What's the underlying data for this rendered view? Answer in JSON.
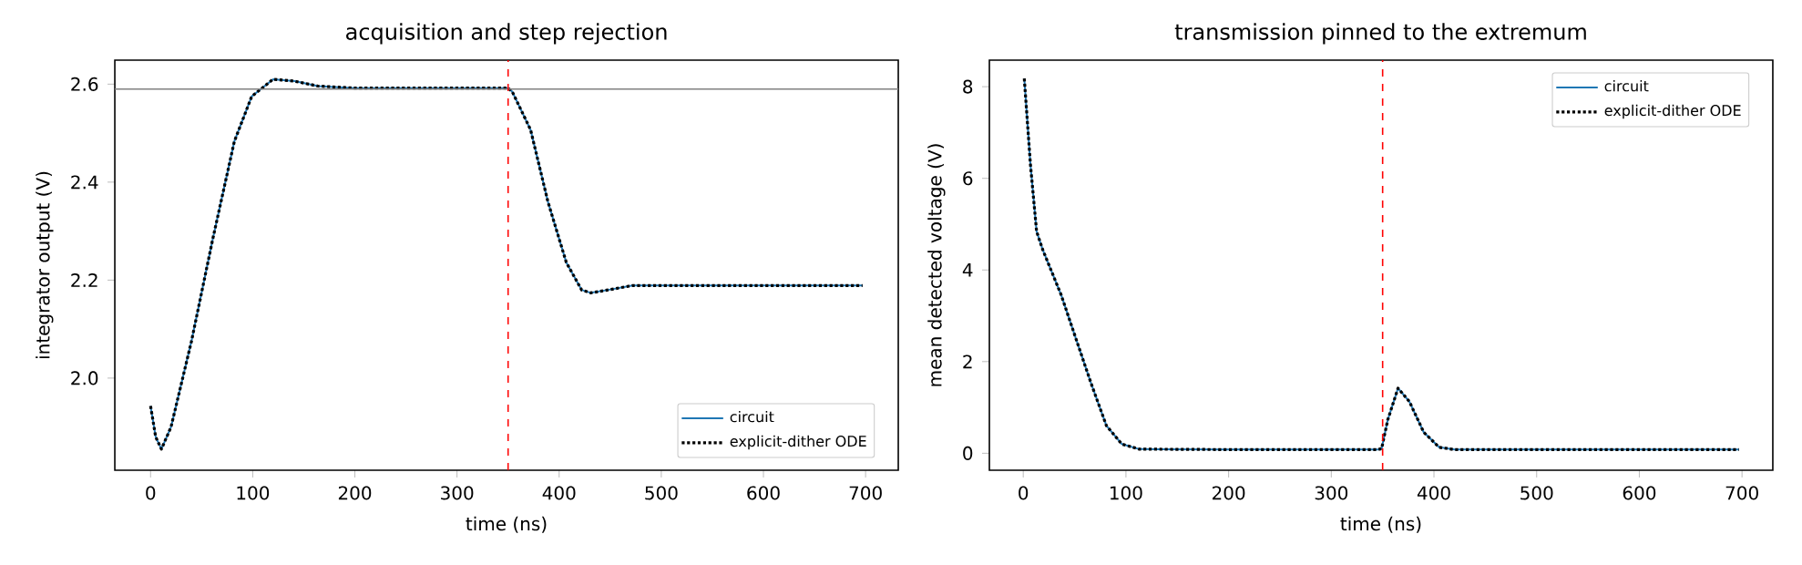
{
  "chart_data": [
    {
      "type": "line",
      "title": "acquisition and step rejection",
      "xlabel": "time (ns)",
      "ylabel": "integrator output (V)",
      "x": [
        0,
        5,
        10.6,
        20,
        40,
        61,
        82,
        99,
        120,
        141,
        164,
        200,
        250,
        300,
        350,
        354,
        372,
        389,
        407,
        422,
        431,
        448,
        472,
        550,
        697
      ],
      "series": [
        {
          "name": "circuit",
          "color": "#1f77b4",
          "line_style": "solid",
          "values": [
            1.943,
            1.88,
            1.855,
            1.9,
            2.075,
            2.285,
            2.483,
            2.575,
            2.61,
            2.606,
            2.596,
            2.592,
            2.592,
            2.592,
            2.592,
            2.585,
            2.507,
            2.36,
            2.236,
            2.18,
            2.174,
            2.18,
            2.189,
            2.189,
            2.189
          ]
        },
        {
          "name": "explicit-dither ODE",
          "color": "#000000",
          "line_style": "dotted",
          "values": [
            1.943,
            1.88,
            1.855,
            1.9,
            2.075,
            2.285,
            2.483,
            2.575,
            2.61,
            2.606,
            2.596,
            2.592,
            2.592,
            2.592,
            2.592,
            2.585,
            2.507,
            2.36,
            2.236,
            2.18,
            2.174,
            2.18,
            2.189,
            2.189,
            2.189
          ]
        }
      ],
      "xlim": [
        -35,
        732
      ],
      "ylim": [
        1.812,
        2.649
      ],
      "xticks": [
        0,
        100,
        200,
        300,
        400,
        500,
        600,
        700
      ],
      "yticks": [
        {
          "value": 2.0,
          "label": "2.0"
        },
        {
          "value": 2.2,
          "label": "2.2"
        },
        {
          "value": 2.4,
          "label": "2.4"
        },
        {
          "value": 2.6,
          "label": "2.6"
        }
      ],
      "ref_lines": [
        {
          "axis": "y",
          "value": 2.59,
          "color": "#808080",
          "line_style": "solid"
        },
        {
          "axis": "x",
          "value": 350,
          "color": "#ff0000",
          "line_style": "dashed"
        }
      ],
      "legend": "bottom right"
    },
    {
      "type": "line",
      "title": "transmission pinned to the extremum",
      "xlabel": "time (ns)",
      "ylabel": "mean detected voltage (V)",
      "x": [
        1,
        7,
        13,
        19,
        37,
        48,
        66,
        81,
        96,
        113,
        200,
        300,
        345,
        349,
        355,
        365,
        376,
        390,
        405,
        420,
        550,
        697
      ],
      "series": [
        {
          "name": "circuit",
          "color": "#1f77b4",
          "line_style": "solid",
          "values": [
            8.18,
            6.3,
            4.84,
            4.44,
            3.45,
            2.72,
            1.53,
            0.6,
            0.2,
            0.09,
            0.08,
            0.08,
            0.08,
            0.1,
            0.73,
            1.42,
            1.13,
            0.46,
            0.13,
            0.08,
            0.08,
            0.08
          ]
        },
        {
          "name": "explicit-dither ODE",
          "color": "#000000",
          "line_style": "dotted",
          "values": [
            8.18,
            6.3,
            4.84,
            4.44,
            3.45,
            2.72,
            1.53,
            0.6,
            0.2,
            0.09,
            0.08,
            0.08,
            0.08,
            0.1,
            0.73,
            1.42,
            1.13,
            0.46,
            0.13,
            0.08,
            0.08,
            0.08
          ]
        }
      ],
      "xlim": [
        -33,
        730
      ],
      "ylim": [
        -0.37,
        8.58
      ],
      "xticks": [
        0,
        100,
        200,
        300,
        400,
        500,
        600,
        700
      ],
      "yticks": [
        0,
        2,
        4,
        6,
        8
      ],
      "ref_lines": [
        {
          "axis": "x",
          "value": 350,
          "color": "#ff0000",
          "line_style": "dashed"
        }
      ],
      "legend": "top right"
    }
  ]
}
